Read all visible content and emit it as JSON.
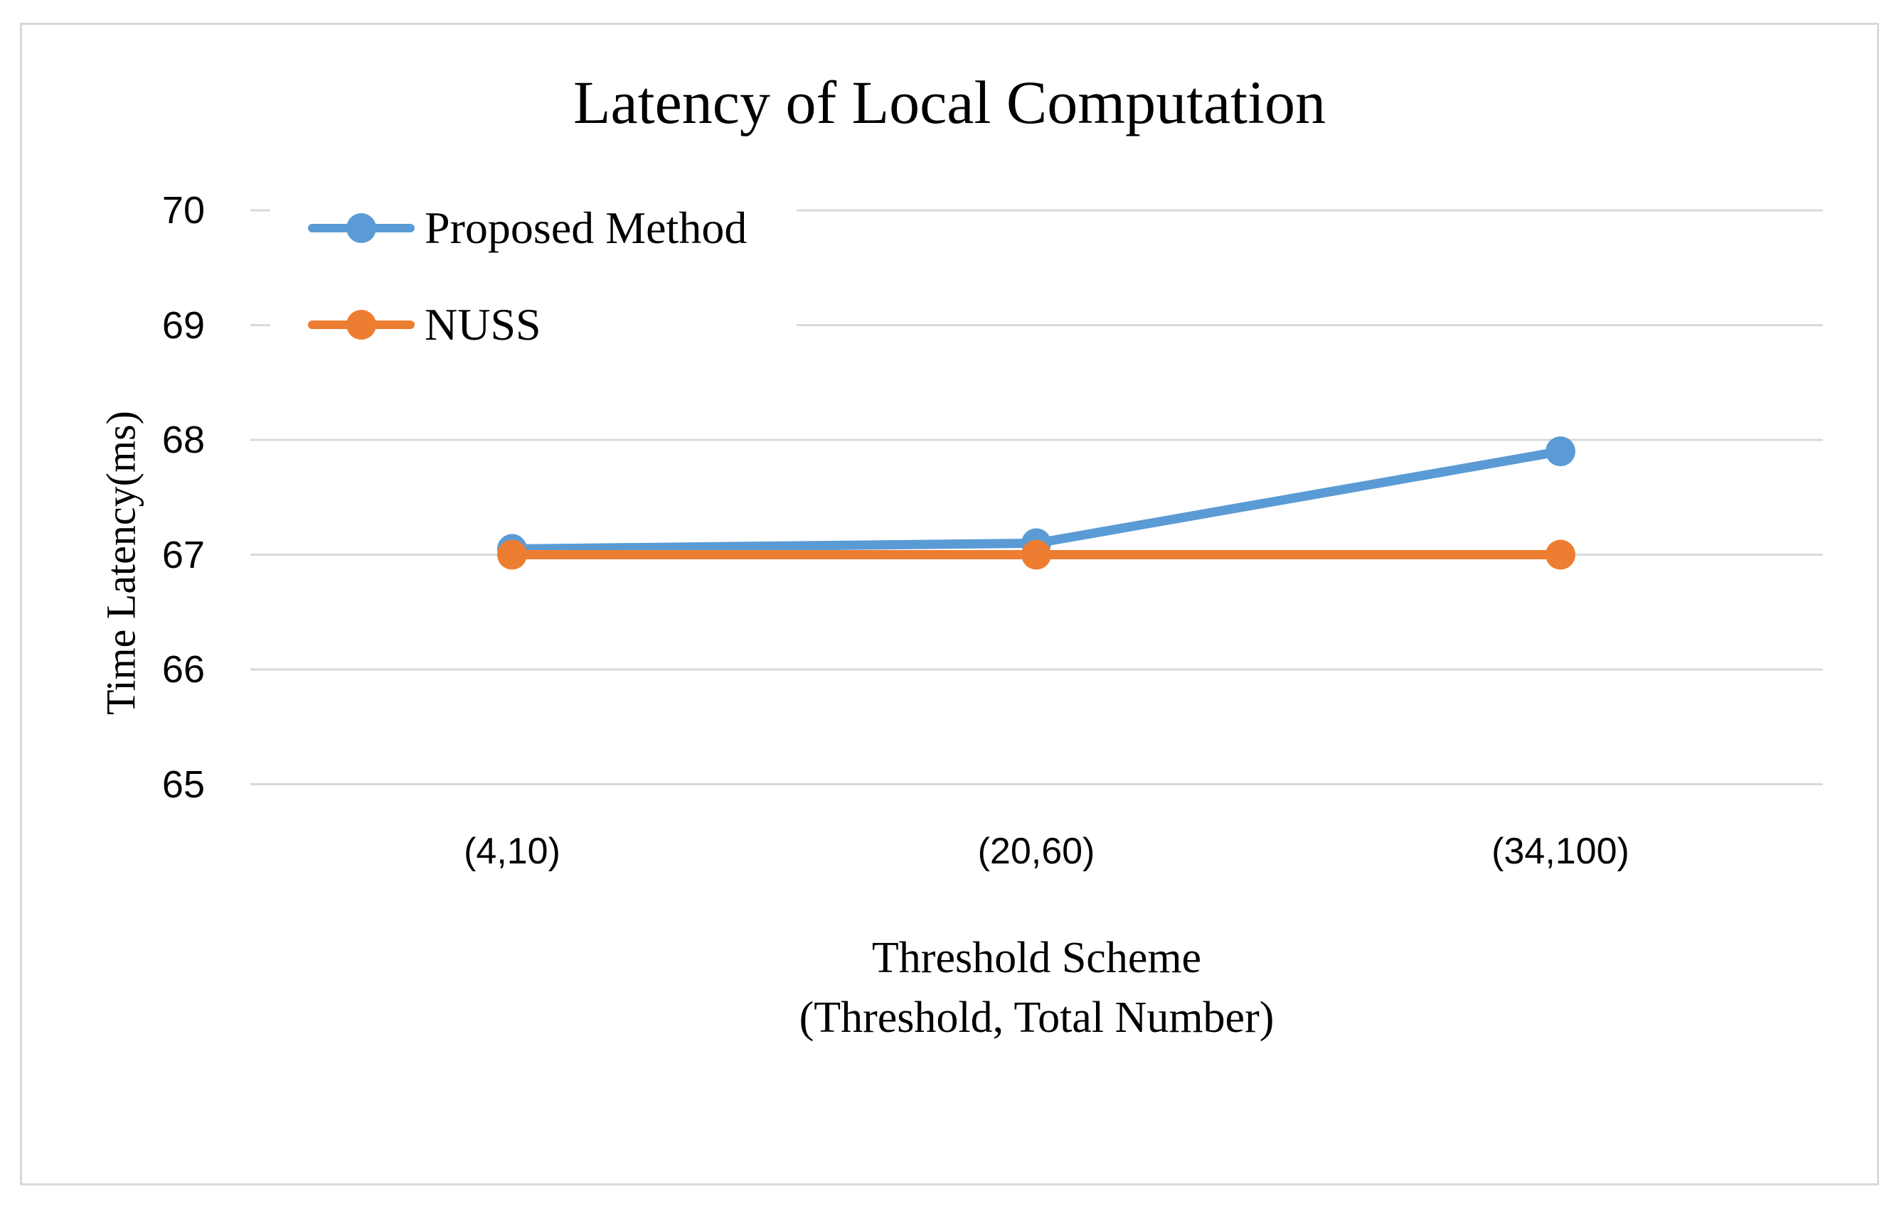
{
  "chart_data": {
    "type": "line",
    "title": "Latency of Local Computation",
    "y_axis_title": "Time Latency(ms)",
    "x_axis_title_lines": [
      "Threshold Scheme",
      "(Threshold, Total Number)"
    ],
    "categories": [
      "(4,10)",
      "(20,60)",
      "(34,100)"
    ],
    "series": [
      {
        "name": "Proposed Method",
        "color": "#5B9BD5",
        "values": [
          67.05,
          67.1,
          67.9
        ]
      },
      {
        "name": "NUSS",
        "color": "#ED7D31",
        "values": [
          67.0,
          67.0,
          67.0
        ]
      }
    ],
    "ylim": [
      65,
      70
    ],
    "yticks": [
      70,
      69,
      68,
      67,
      66,
      65
    ],
    "grid": true,
    "legend_position": "upper-left-overlay",
    "gridline_color": "#D9D9D9",
    "frame_border_color": "#D9D9D9",
    "text_color": "#000000"
  }
}
